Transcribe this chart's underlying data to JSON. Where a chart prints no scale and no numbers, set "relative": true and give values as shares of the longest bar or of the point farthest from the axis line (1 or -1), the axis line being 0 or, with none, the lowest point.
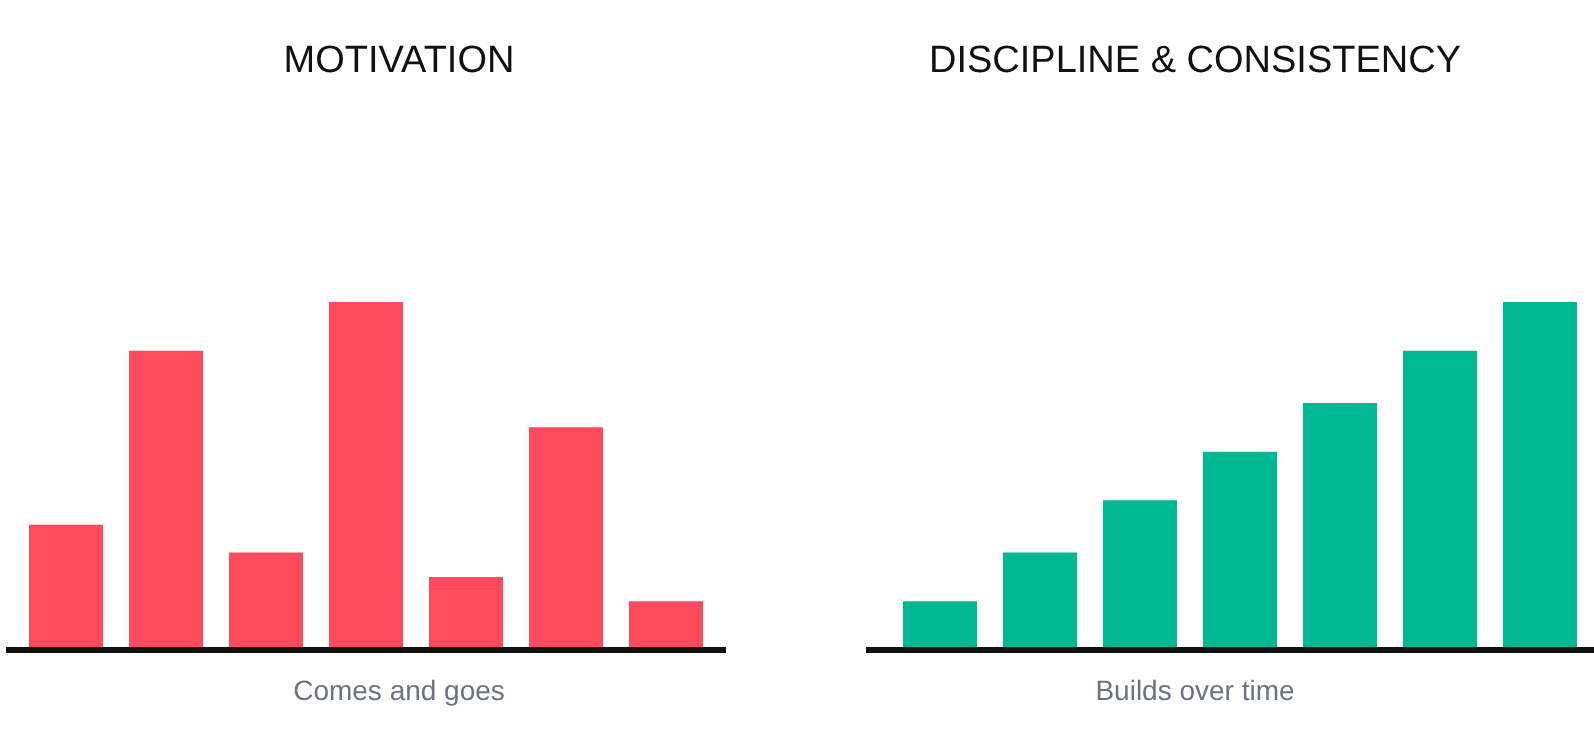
{
  "chart_data": [
    {
      "type": "bar",
      "title": "MOTIVATION",
      "xlabel": "Comes and goes",
      "relative": true,
      "categories": [
        null,
        null,
        null,
        null,
        null,
        null,
        null
      ],
      "values": [
        0.36,
        0.86,
        0.28,
        1,
        0.21,
        0.64,
        0.14
      ],
      "color": "#fd4a5c"
    },
    {
      "type": "bar",
      "title": "DISCIPLINE & CONSISTENCY",
      "xlabel": "Builds over time",
      "relative": true,
      "categories": [
        null,
        null,
        null,
        null,
        null,
        null,
        null
      ],
      "values": [
        0.14,
        0.28,
        0.43,
        0.57,
        0.71,
        0.86,
        1
      ],
      "color": "#00b894"
    }
  ]
}
